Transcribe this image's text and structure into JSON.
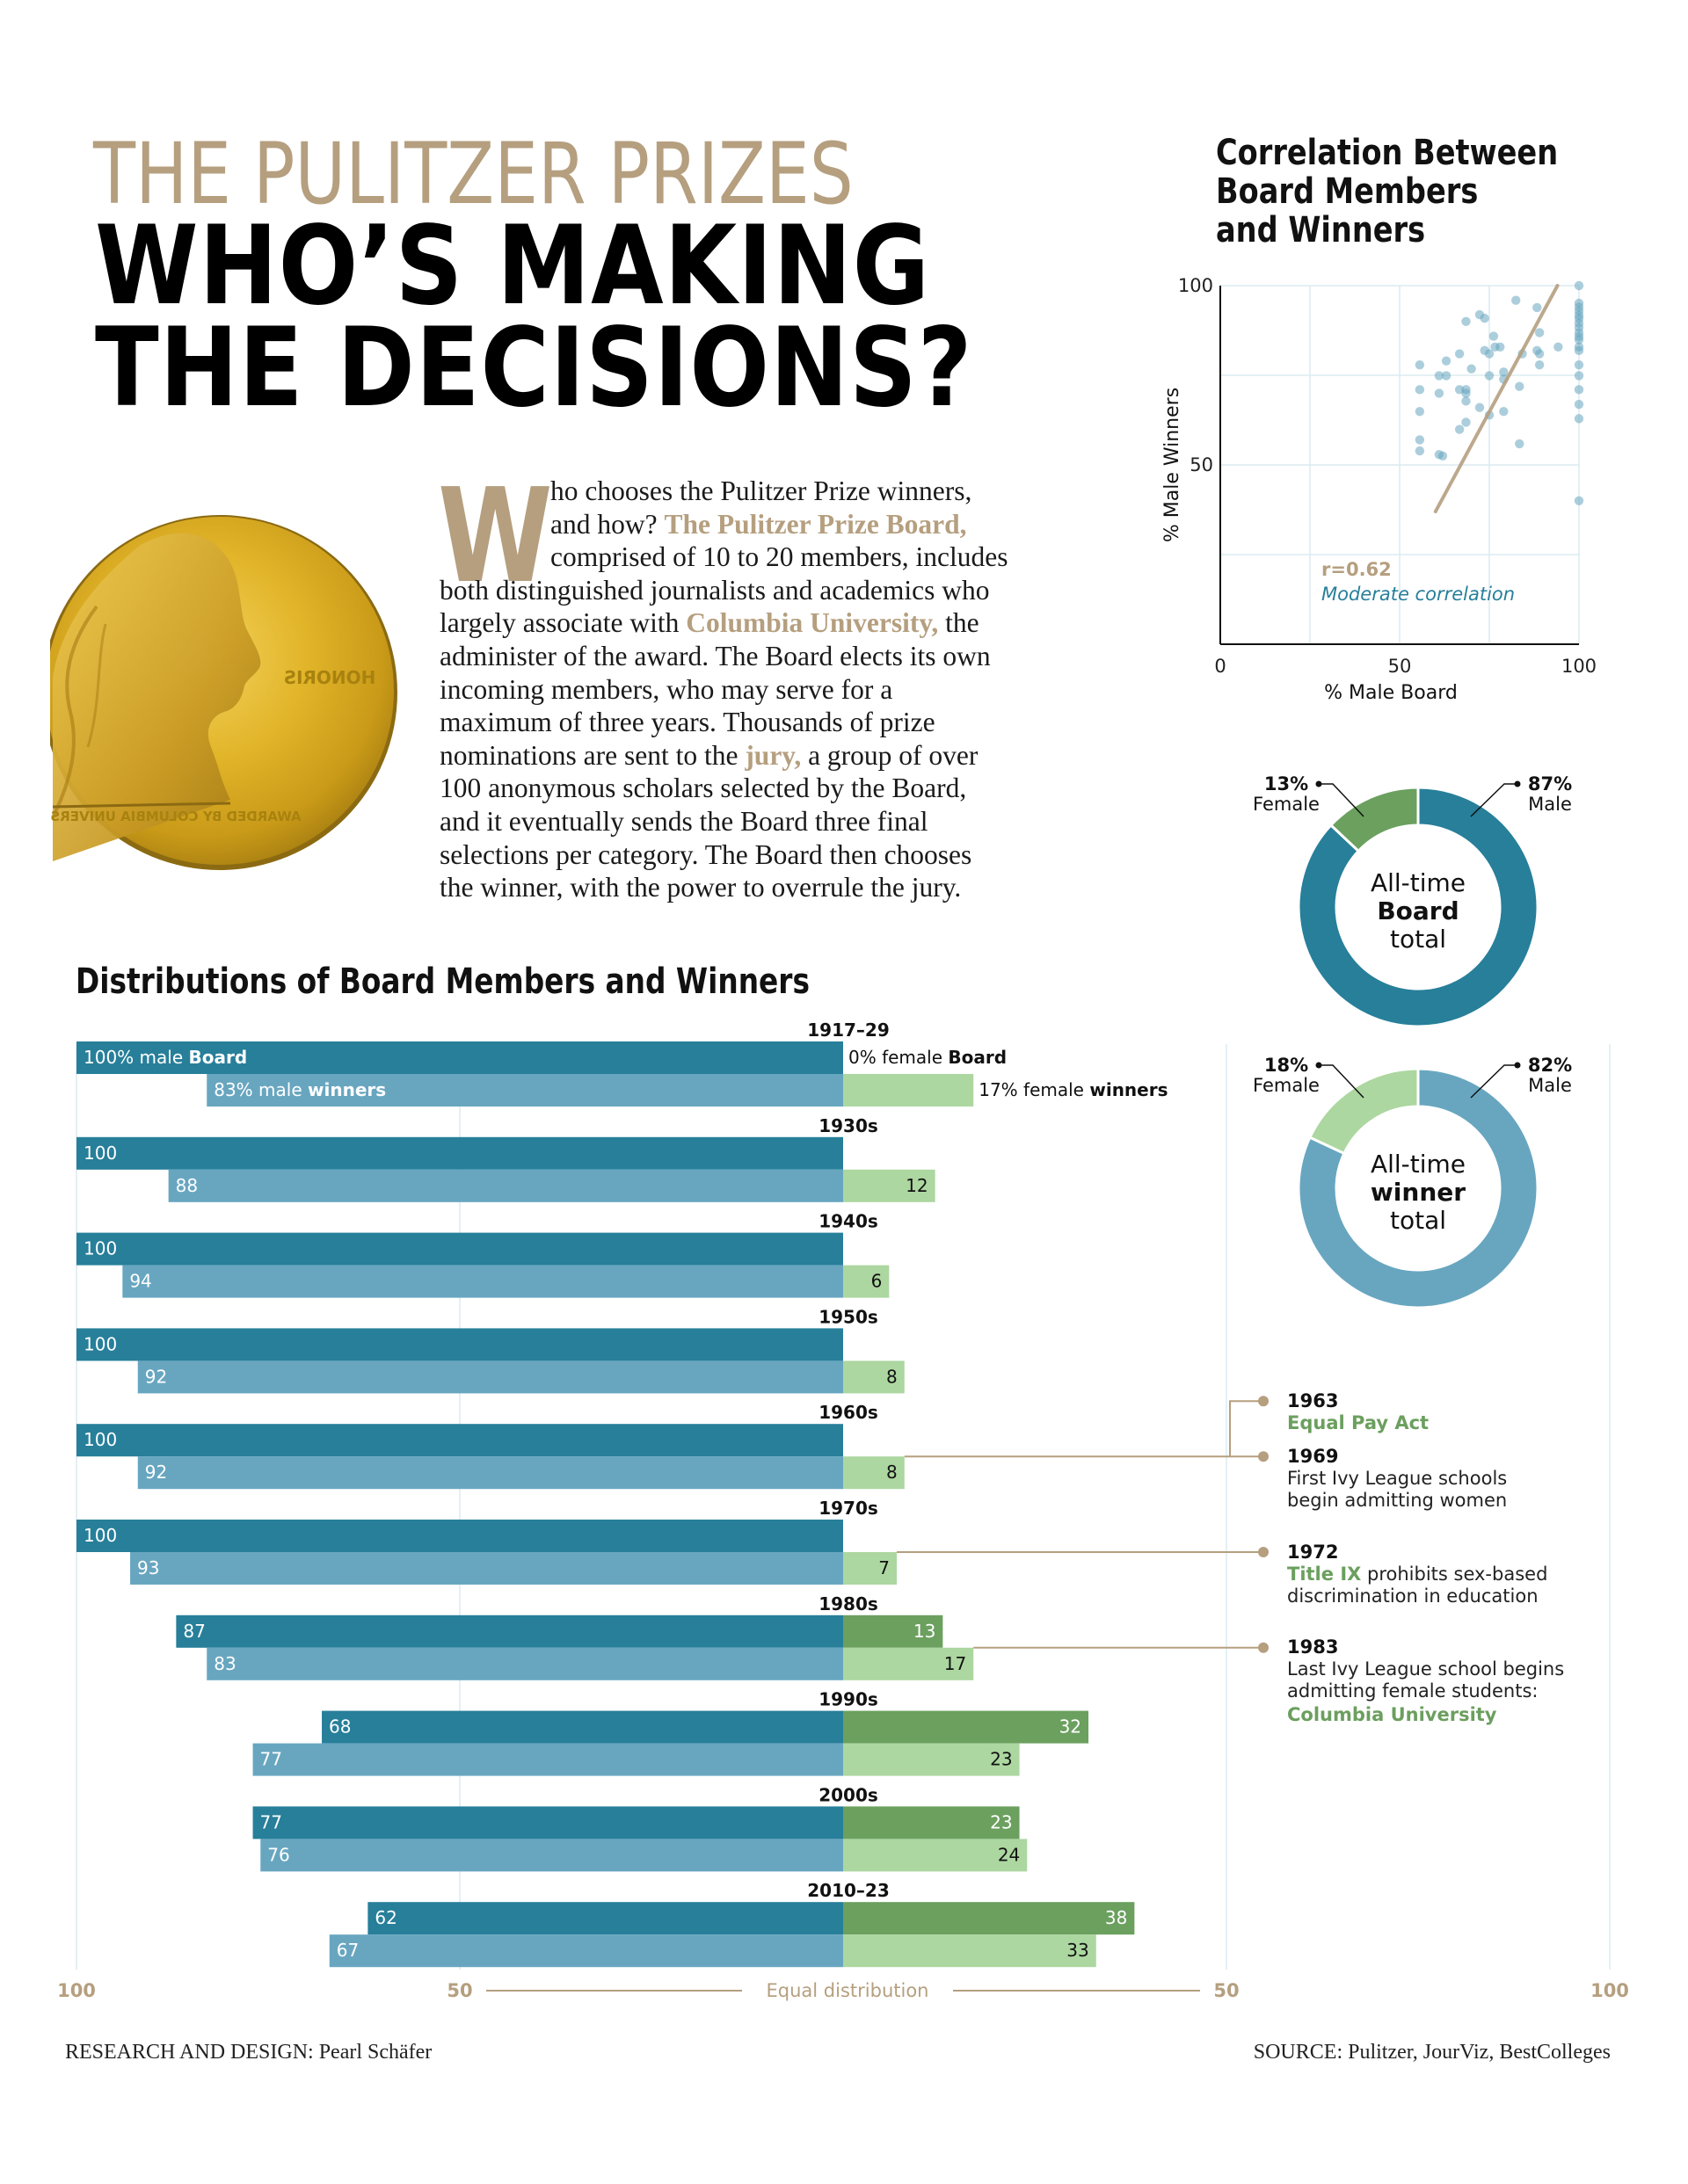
{
  "header": {
    "kicker": "THE PULITZER PRIZES",
    "headline_line1": "WHO’S MAKING",
    "headline_line2": "THE DECISIONS?"
  },
  "intro": {
    "drop_cap": "W",
    "lines": [
      {
        "parts": [
          {
            "t": "ho chooses the Pulitzer Prize winners,",
            "hl": false
          }
        ]
      },
      {
        "parts": [
          {
            "t": "and how? ",
            "hl": false
          },
          {
            "t": "The Pulitzer Prize Board,",
            "hl": true
          }
        ]
      },
      {
        "parts": [
          {
            "t": "comprised of 10 to 20 members, includes",
            "hl": false
          }
        ]
      },
      {
        "parts": [
          {
            "t": "both distinguished journalists and academics who",
            "hl": false
          }
        ]
      },
      {
        "parts": [
          {
            "t": "largely associate with ",
            "hl": false
          },
          {
            "t": "Columbia University,",
            "hl": true
          },
          {
            "t": " the",
            "hl": false
          }
        ]
      },
      {
        "parts": [
          {
            "t": "administer of the award. The Board elects its own",
            "hl": false
          }
        ]
      },
      {
        "parts": [
          {
            "t": "incoming members, who may serve for a",
            "hl": false
          }
        ]
      },
      {
        "parts": [
          {
            "t": "maximum of three years. Thousands of prize",
            "hl": false
          }
        ]
      },
      {
        "parts": [
          {
            "t": "nominations are sent to the ",
            "hl": false
          },
          {
            "t": "jury,",
            "hl": true
          },
          {
            "t": " a group of over",
            "hl": false
          }
        ]
      },
      {
        "parts": [
          {
            "t": "100 anonymous scholars selected by the Board,",
            "hl": false
          }
        ]
      },
      {
        "parts": [
          {
            "t": "and it eventually sends the Board three final",
            "hl": false
          }
        ]
      },
      {
        "parts": [
          {
            "t": "selections per category. The Board then chooses",
            "hl": false
          }
        ]
      },
      {
        "parts": [
          {
            "t": "the winner, with the power to overrule the jury.",
            "hl": false
          }
        ]
      }
    ]
  },
  "medal": {
    "text_right": "HONORIS",
    "text_bottom": "AWARDED BY COLUMBIA UNIVERS"
  },
  "colors": {
    "accent_tan": "#b59f7f",
    "board_male": "#277f9a",
    "winner_male": "#68a6c0",
    "board_female": "#6ba05f",
    "winner_female": "#acd7a0",
    "annotation_green": "#6b9f5e",
    "grid": "#dcebf0"
  },
  "chart_data": [
    {
      "type": "scatter",
      "title": "Correlation Between Board Members and Winners",
      "title_lines": [
        "Correlation Between",
        "Board Members",
        "and Winners"
      ],
      "xlabel": "% Male Board",
      "ylabel": "% Male Winners",
      "xlim": [
        0,
        100
      ],
      "ylim": [
        0,
        100
      ],
      "x_ticks": [
        "0",
        "50",
        "100"
      ],
      "y_ticks": [
        "100",
        "50"
      ],
      "grid": true,
      "annotation_r": "r=0.62",
      "annotation_text": "Moderate correlation",
      "trendline": {
        "x": [
          60,
          94
        ],
        "y": [
          37,
          100
        ]
      },
      "points": [
        [
          55.6,
          77.9
        ],
        [
          55.6,
          71
        ],
        [
          55.6,
          64.9
        ],
        [
          55.6,
          57
        ],
        [
          55.6,
          53.9
        ],
        [
          61,
          74.9
        ],
        [
          63,
          74.9
        ],
        [
          63,
          79
        ],
        [
          61,
          70
        ],
        [
          61,
          52.9
        ],
        [
          62,
          52.5
        ],
        [
          66.7,
          81
        ],
        [
          68.5,
          90
        ],
        [
          66.7,
          71
        ],
        [
          68.5,
          71
        ],
        [
          68.5,
          70
        ],
        [
          68.5,
          67.8
        ],
        [
          70,
          76.8
        ],
        [
          72.3,
          91.9
        ],
        [
          73.7,
          90.9
        ],
        [
          73.7,
          81.9
        ],
        [
          75,
          81
        ],
        [
          75,
          74.9
        ],
        [
          72.3,
          66
        ],
        [
          75,
          63.9
        ],
        [
          68.5,
          61.9
        ],
        [
          66.7,
          59.9
        ],
        [
          76.2,
          85.9
        ],
        [
          76.6,
          82.9
        ],
        [
          78,
          82.9
        ],
        [
          79,
          75.9
        ],
        [
          79,
          73.9
        ],
        [
          79,
          64.9
        ],
        [
          82.4,
          95.9
        ],
        [
          83.4,
          71.9
        ],
        [
          83.4,
          55.9
        ],
        [
          84.2,
          81
        ],
        [
          88.3,
          93.9
        ],
        [
          88.3,
          81.9
        ],
        [
          89,
          81
        ],
        [
          89,
          86.9
        ],
        [
          89,
          77.9
        ],
        [
          94.2,
          82.9
        ],
        [
          100,
          100
        ],
        [
          100,
          95.1
        ],
        [
          100,
          94
        ],
        [
          100,
          92.9
        ],
        [
          100,
          91.7
        ],
        [
          100,
          90.8
        ],
        [
          100,
          89.5
        ],
        [
          100,
          88.3
        ],
        [
          100,
          86.9
        ],
        [
          100,
          85.8
        ],
        [
          100,
          84.9
        ],
        [
          100,
          82.9
        ],
        [
          100,
          81.9
        ],
        [
          100,
          77.9
        ],
        [
          100,
          74.9
        ],
        [
          100,
          71
        ],
        [
          100,
          66.9
        ],
        [
          100,
          62.9
        ],
        [
          100,
          40
        ]
      ]
    },
    {
      "type": "pie",
      "variant": "donut",
      "center_lines": [
        "All-time",
        "Board",
        "total"
      ],
      "slices": [
        {
          "label": "Male",
          "value": 87,
          "display": "87%"
        },
        {
          "label": "Female",
          "value": 13,
          "display": "13%"
        }
      ]
    },
    {
      "type": "pie",
      "variant": "donut",
      "center_lines": [
        "All-time",
        "winner",
        "total"
      ],
      "slices": [
        {
          "label": "Male",
          "value": 82,
          "display": "82%"
        },
        {
          "label": "Female",
          "value": 18,
          "display": "18%"
        }
      ]
    },
    {
      "type": "bar",
      "variant": "diverging",
      "title": "Distributions of Board Members and Winners",
      "categories": [
        "1917–29",
        "1930s",
        "1940s",
        "1950s",
        "1960s",
        "1970s",
        "1980s",
        "1990s",
        "2000s",
        "2010–23"
      ],
      "series": [
        {
          "name": "male Board",
          "values": [
            100,
            100,
            100,
            100,
            100,
            100,
            87,
            68,
            77,
            62
          ]
        },
        {
          "name": "female Board",
          "values": [
            0,
            0,
            0,
            0,
            0,
            0,
            13,
            32,
            23,
            38
          ]
        },
        {
          "name": "male winners",
          "values": [
            83,
            88,
            94,
            92,
            92,
            93,
            83,
            77,
            76,
            67
          ]
        },
        {
          "name": "female winners",
          "values": [
            17,
            12,
            6,
            8,
            8,
            7,
            17,
            23,
            24,
            33
          ]
        }
      ],
      "first_row_labels": {
        "board_male": [
          "100% male ",
          "Board"
        ],
        "board_female": [
          "0% female ",
          "Board"
        ],
        "winner_male": [
          "83% male ",
          "winners"
        ],
        "winner_female": [
          "17% female ",
          "winners"
        ]
      },
      "x_ticks": [
        "100",
        "50",
        "50",
        "100"
      ],
      "center_label": "Equal distribution",
      "xlim": [
        -100,
        100
      ]
    }
  ],
  "annotations": [
    {
      "year": "1963",
      "segments": [
        {
          "t": "Equal Pay Act",
          "green": true
        }
      ]
    },
    {
      "year": "1969",
      "lines": [
        "First Ivy League schools",
        "begin admitting women"
      ]
    },
    {
      "year": "1972",
      "segments": [
        {
          "t": "Title IX",
          "green": true
        },
        {
          "t": " prohibits sex-based",
          "green": false
        }
      ],
      "lines": [
        "discrimination in education"
      ]
    },
    {
      "year": "1983",
      "lines": [
        "Last Ivy League school begins",
        "admitting female students:"
      ],
      "green_line": "Columbia University"
    }
  ],
  "footer": {
    "credit": "RESEARCH AND DESIGN: Pearl Schäfer",
    "source": "SOURCE: Pulitzer, JourViz, BestColleges"
  }
}
